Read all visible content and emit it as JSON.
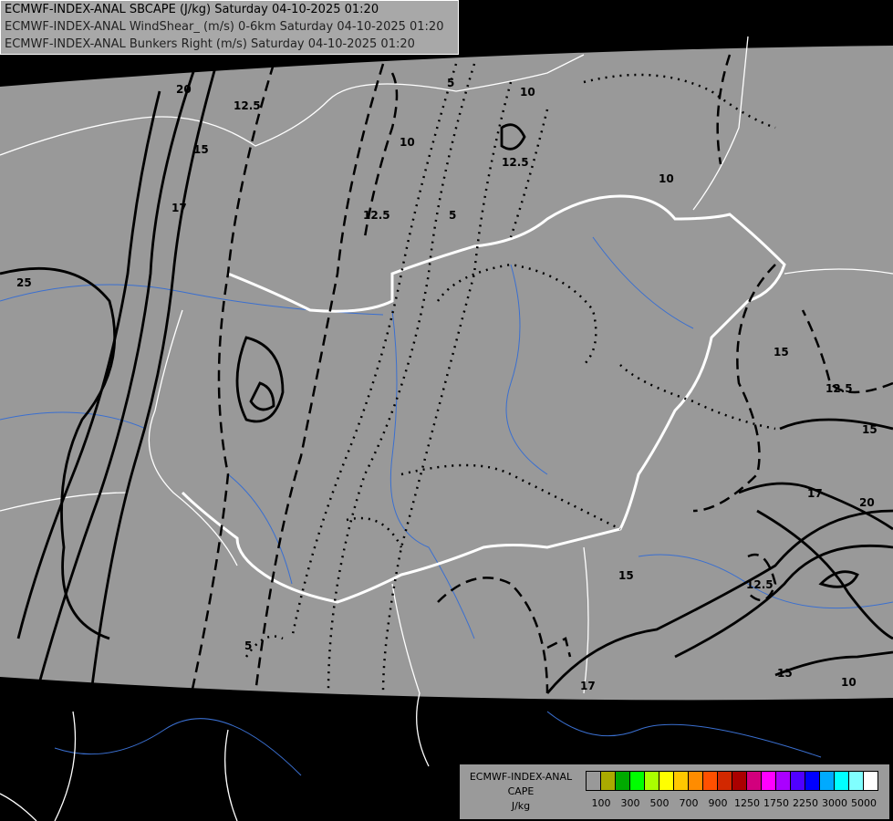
{
  "header": {
    "lines": [
      "ECMWF-INDEX-ANAL SBCAPE (J/kg) Saturday 04-10-2025 01:20",
      "ECMWF-INDEX-ANAL WindShear_ (m/s) 0-6km Saturday 04-10-2025 01:20",
      "ECMWF-INDEX-ANAL Bunkers Right (m/s) Saturday 04-10-2025 01:20"
    ]
  },
  "legend": {
    "title_lines": [
      "ECMWF-INDEX-ANAL",
      "CAPE",
      "J/kg"
    ],
    "colors": [
      "#999999",
      "#aaaa00",
      "#00aa00",
      "#00ff00",
      "#aaff00",
      "#ffff00",
      "#ffc800",
      "#ff8c00",
      "#ff5000",
      "#d22800",
      "#aa0000",
      "#d2007d",
      "#ff00ff",
      "#aa00ff",
      "#5000ff",
      "#0000ff",
      "#00aaff",
      "#00ffff",
      "#80ffff",
      "#ffffff"
    ],
    "ticks": [
      "100",
      "300",
      "500",
      "700",
      "900",
      "1250",
      "1750",
      "2250",
      "3000",
      "5000"
    ]
  },
  "map": {
    "background_color": "#000000",
    "data_area_color": "#999999",
    "country_border_color": "#ffffff",
    "river_color": "#3366cc",
    "contour_labels": [
      "20",
      "12.5",
      "15",
      "17",
      "25",
      "10",
      "5",
      "12.5",
      "10",
      "5",
      "12.5",
      "10",
      "15",
      "12.5",
      "15",
      "17",
      "20",
      "15",
      "12.5",
      "15",
      "10",
      "17",
      "5"
    ]
  }
}
